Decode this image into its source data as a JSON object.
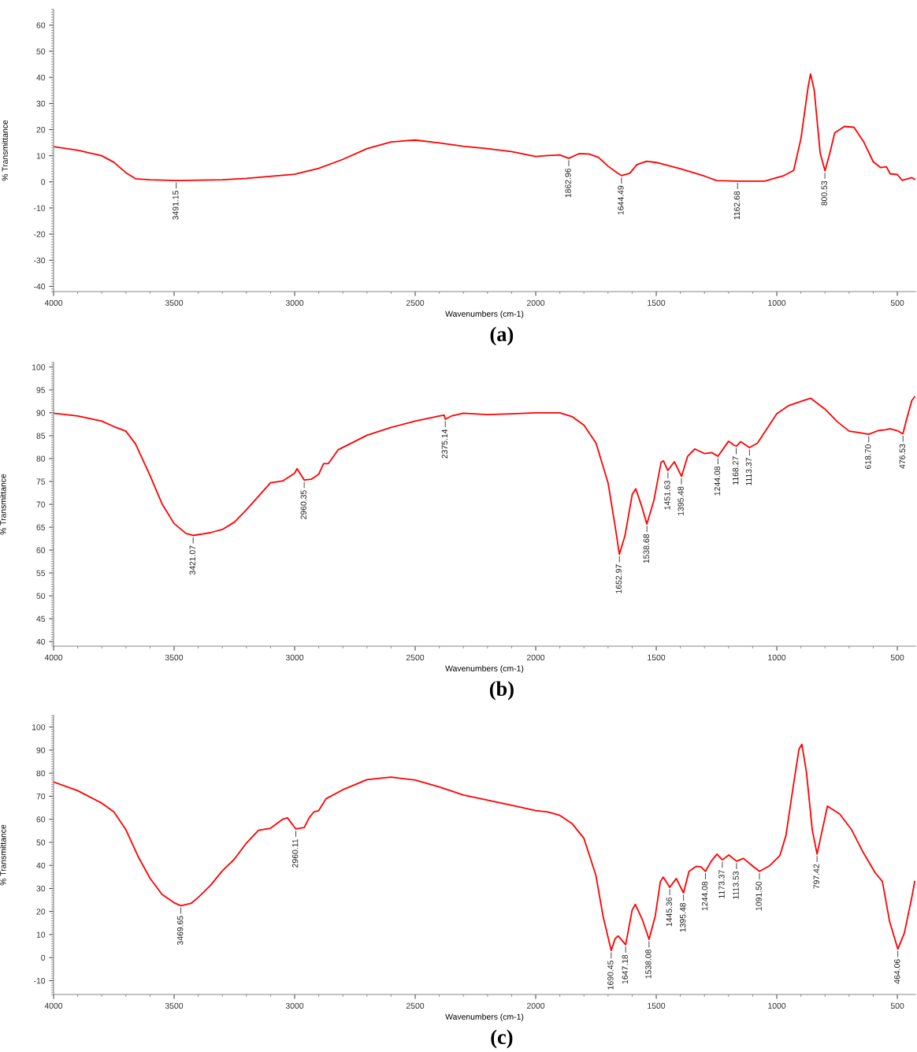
{
  "chart_data": [
    {
      "type": "line",
      "title": "(a)",
      "xlabel": "Wavenumbers (cm-1)",
      "ylabel": "% Transmittance",
      "xlim": [
        4000,
        425
      ],
      "ylim": [
        -42,
        66
      ],
      "xticks": [
        4000,
        3500,
        3000,
        2500,
        2000,
        1500,
        1000,
        500
      ],
      "yticks": [
        -40,
        -30,
        -20,
        -10,
        0,
        10,
        20,
        30,
        40,
        50,
        60
      ],
      "series": [
        {
          "color": "#ff0000",
          "x": [
            4000,
            3900,
            3800,
            3750,
            3700,
            3660,
            3600,
            3491,
            3300,
            3200,
            3000,
            2900,
            2800,
            2700,
            2600,
            2500,
            2400,
            2300,
            2200,
            2100,
            2000,
            1950,
            1900,
            1863,
            1820,
            1780,
            1740,
            1700,
            1660,
            1644,
            1610,
            1580,
            1540,
            1500,
            1400,
            1300,
            1250,
            1163,
            1050,
            1000,
            970,
            930,
            900,
            870,
            860,
            845,
            820,
            800,
            780,
            760,
            720,
            680,
            640,
            600,
            570,
            545,
            530,
            500,
            480,
            460,
            440,
            428
          ],
          "values": [
            13.5,
            12.1,
            10,
            7.5,
            3.5,
            1.2,
            0.8,
            0.5,
            0.8,
            1.3,
            2.9,
            5.2,
            8.6,
            12.7,
            15.3,
            16,
            14.9,
            13.6,
            12.7,
            11.6,
            9.7,
            10.1,
            10.3,
            9.0,
            10.8,
            10.7,
            9.4,
            6,
            3.3,
            2.4,
            3.3,
            6.6,
            7.9,
            7.4,
            5,
            2.2,
            0.5,
            0.3,
            0.3,
            1.6,
            2.4,
            4.4,
            16.5,
            36.4,
            41.3,
            35.3,
            11,
            4.2,
            11,
            18.7,
            21.2,
            20.9,
            15.4,
            7.7,
            5.5,
            5.8,
            3.1,
            2.8,
            0.6,
            1.1,
            1.6,
            1
          ]
        }
      ],
      "annotations": [
        {
          "text": "3491.15",
          "x": 3491.15,
          "y": 0.5
        },
        {
          "text": "1862.96",
          "x": 1862.96,
          "y": 9.0
        },
        {
          "text": "1644.49",
          "x": 1644.49,
          "y": 2.4
        },
        {
          "text": "1162.68",
          "x": 1162.68,
          "y": 0.3
        },
        {
          "text": "800.53",
          "x": 800.53,
          "y": 4.2
        }
      ]
    },
    {
      "type": "line",
      "title": "(b)",
      "xlabel": "Wavenumbers (cm-1)",
      "ylabel": "% Transmittance",
      "xlim": [
        4000,
        425
      ],
      "ylim": [
        39,
        101
      ],
      "xticks": [
        4000,
        3500,
        3000,
        2500,
        2000,
        1500,
        1000,
        500
      ],
      "yticks": [
        40,
        45,
        50,
        55,
        60,
        65,
        70,
        75,
        80,
        85,
        90,
        95,
        100
      ],
      "series": [
        {
          "color": "#ff0000",
          "x": [
            4000,
            3900,
            3800,
            3750,
            3700,
            3660,
            3600,
            3550,
            3500,
            3450,
            3421,
            3350,
            3300,
            3250,
            3200,
            3100,
            3050,
            3000,
            2990,
            2960,
            2930,
            2900,
            2880,
            2860,
            2820,
            2700,
            2600,
            2500,
            2400,
            2380,
            2375,
            2350,
            2300,
            2200,
            2100,
            2000,
            1900,
            1850,
            1800,
            1750,
            1700,
            1670,
            1653,
            1630,
            1600,
            1585,
            1560,
            1539,
            1510,
            1480,
            1470,
            1452,
            1425,
            1395,
            1370,
            1340,
            1300,
            1270,
            1244,
            1200,
            1180,
            1168,
            1150,
            1113,
            1080,
            1000,
            950,
            900,
            860,
            800,
            750,
            700,
            650,
            619,
            580,
            550,
            530,
            500,
            477,
            460,
            440,
            428
          ],
          "values": [
            89.9,
            89.3,
            88.2,
            87,
            86,
            83.2,
            76.3,
            70.1,
            65.8,
            63.6,
            63.2,
            63.8,
            64.5,
            66.1,
            68.8,
            74.7,
            75.1,
            76.8,
            77.8,
            75.3,
            75.5,
            76.6,
            78.9,
            78.9,
            81.9,
            85.1,
            86.8,
            88.2,
            89.3,
            89.5,
            88.6,
            89.3,
            89.9,
            89.6,
            89.8,
            90,
            90,
            89.2,
            87.3,
            83.4,
            74.7,
            65,
            59.1,
            63.1,
            72.1,
            73.4,
            69.5,
            65.7,
            70.8,
            79.2,
            79.5,
            77.4,
            79.3,
            76.1,
            80.5,
            82.1,
            81.1,
            81.3,
            80.5,
            83.8,
            83,
            82.7,
            83.7,
            82.4,
            83.4,
            89.8,
            91.6,
            92.5,
            93.2,
            90.8,
            88.1,
            86,
            85.6,
            85.3,
            86.1,
            86.3,
            86.5,
            86.1,
            85.4,
            88.9,
            92.7,
            93.5
          ]
        }
      ],
      "annotations": [
        {
          "text": "3421.07",
          "x": 3421.07,
          "y": 63.2
        },
        {
          "text": "2960.35",
          "x": 2960.35,
          "y": 75.3
        },
        {
          "text": "2375.14",
          "x": 2375.14,
          "y": 88.6
        },
        {
          "text": "1652.97",
          "x": 1652.97,
          "y": 59.1
        },
        {
          "text": "1538.68",
          "x": 1538.68,
          "y": 65.7
        },
        {
          "text": "1451.63",
          "x": 1451.63,
          "y": 77.4
        },
        {
          "text": "1395.48",
          "x": 1395.48,
          "y": 76.1
        },
        {
          "text": "1244.08",
          "x": 1244.08,
          "y": 80.5
        },
        {
          "text": "1168.27",
          "x": 1168.27,
          "y": 82.7
        },
        {
          "text": "1113.37",
          "x": 1113.37,
          "y": 82.4
        },
        {
          "text": "618.70",
          "x": 618.7,
          "y": 85.3
        },
        {
          "text": "476.53",
          "x": 476.53,
          "y": 85.4
        }
      ]
    },
    {
      "type": "line",
      "title": "(c)",
      "xlabel": "Wavenumbers (cm-1)",
      "ylabel": "% Transmittance",
      "xlim": [
        4000,
        425
      ],
      "ylim": [
        -16,
        105
      ],
      "xticks": [
        4000,
        3500,
        3000,
        2500,
        2000,
        1500,
        1000,
        500
      ],
      "yticks": [
        -10,
        0,
        10,
        20,
        30,
        40,
        50,
        60,
        70,
        80,
        90,
        100
      ],
      "series": [
        {
          "color": "#ff0000",
          "x": [
            4000,
            3900,
            3800,
            3750,
            3700,
            3650,
            3600,
            3550,
            3500,
            3472,
            3430,
            3400,
            3350,
            3300,
            3250,
            3200,
            3150,
            3100,
            3050,
            3030,
            2995,
            2960,
            2940,
            2920,
            2900,
            2870,
            2800,
            2700,
            2600,
            2500,
            2400,
            2300,
            2200,
            2100,
            2000,
            1950,
            1900,
            1850,
            1800,
            1750,
            1721,
            1687,
            1671,
            1658,
            1627,
            1600,
            1587,
            1559,
            1530,
            1504,
            1483,
            1471,
            1444,
            1417,
            1387,
            1364,
            1334,
            1314,
            1296,
            1272,
            1248,
            1226,
            1199,
            1167,
            1138,
            1102,
            1072,
            1029,
            987,
            962,
            932,
            908,
            896,
            877,
            853,
            833,
            811,
            790,
            739,
            690,
            641,
            592,
            562,
            532,
            498,
            471,
            441,
            428
          ],
          "values": [
            76.2,
            72.4,
            67,
            63.2,
            55.5,
            44,
            34.4,
            27.4,
            23.8,
            22.5,
            23.5,
            26.1,
            31.2,
            37.6,
            42.7,
            49.7,
            55.2,
            56.1,
            60,
            60.6,
            55.8,
            56.4,
            60.6,
            63.2,
            63.8,
            68.9,
            72.8,
            77.2,
            78.3,
            77,
            74,
            70.5,
            68.3,
            66.1,
            63.8,
            63.2,
            61.7,
            58.2,
            51.7,
            35.5,
            18.1,
            3.1,
            8.1,
            9.4,
            5.6,
            20.6,
            23.1,
            16.8,
            7.9,
            18.1,
            33,
            34.9,
            30.5,
            34.3,
            28.1,
            37.4,
            39.6,
            39.3,
            37.4,
            41.8,
            44.9,
            42.4,
            44.5,
            41.8,
            43,
            39.9,
            37.4,
            39.9,
            44.3,
            53,
            74.2,
            90.4,
            92.5,
            80.4,
            55.5,
            44.9,
            55.5,
            65.7,
            62.3,
            55.5,
            45.5,
            36.8,
            33,
            15.6,
            3.7,
            10.6,
            25.6,
            33
          ]
        }
      ],
      "annotations": [
        {
          "text": "3469.65",
          "x": 3472,
          "y": 22.5
        },
        {
          "text": "2960.11",
          "x": 2995,
          "y": 55.8
        },
        {
          "text": "1690.45",
          "x": 1687,
          "y": 3.1
        },
        {
          "text": "1647.18",
          "x": 1627,
          "y": 5.6
        },
        {
          "text": "1538.08",
          "x": 1530,
          "y": 7.9
        },
        {
          "text": "1445.36",
          "x": 1444,
          "y": 30.5
        },
        {
          "text": "1395.48",
          "x": 1387,
          "y": 28.1
        },
        {
          "text": "1244.08",
          "x": 1296,
          "y": 37.4
        },
        {
          "text": "1173.37",
          "x": 1226,
          "y": 42.4
        },
        {
          "text": "1113.53",
          "x": 1167,
          "y": 41.8
        },
        {
          "text": "1091.50",
          "x": 1072,
          "y": 37.4
        },
        {
          "text": "797.42",
          "x": 833,
          "y": 44.9
        },
        {
          "text": "464.06",
          "x": 498,
          "y": 3.7
        }
      ]
    }
  ]
}
